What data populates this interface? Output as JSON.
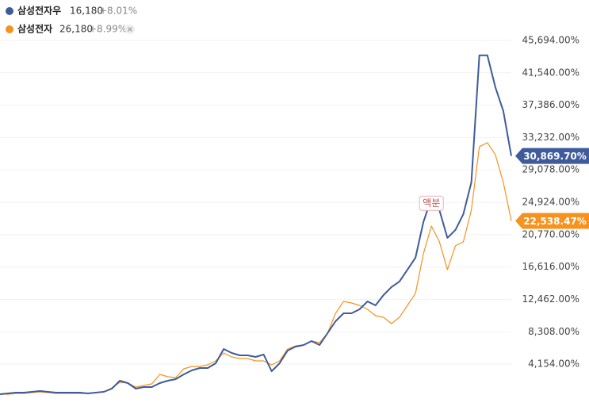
{
  "chart_data": {
    "type": "line",
    "legend": [
      {
        "name": "삼성전자우",
        "price": "16,180",
        "change": "+8.01%"
      },
      {
        "name": "삼성전자",
        "price": "26,180",
        "change": "+8.99%"
      }
    ],
    "annotation": {
      "text": "액분",
      "index": 54,
      "value": 24800
    },
    "series": [
      {
        "name": "삼성전자우",
        "color": "#3f5b9b",
        "values": [
          305,
          407,
          509,
          509,
          611,
          713,
          611,
          509,
          509,
          509,
          509,
          407,
          509,
          611,
          1018,
          2036,
          1731,
          1018,
          1222,
          1222,
          1731,
          2036,
          2240,
          2850,
          3359,
          3665,
          3665,
          4276,
          6108,
          5599,
          5294,
          5294,
          5090,
          5395,
          3258,
          4276,
          5904,
          6413,
          6617,
          7126,
          6617,
          8144,
          9671,
          10689,
          10689,
          11198,
          12216,
          11707,
          13030,
          14048,
          14761,
          16288,
          17815,
          22396,
          25450,
          23923,
          20360,
          21378,
          23414,
          27486,
          43774,
          43774,
          39702,
          36648,
          30869.7
        ],
        "last_label": {
          "value": 30869.7,
          "label": "30,869.70%"
        }
      },
      {
        "name": "삼성전자",
        "color": "#f7921e",
        "values": [
          305,
          305,
          407,
          407,
          509,
          611,
          509,
          407,
          407,
          407,
          407,
          407,
          509,
          611,
          1120,
          1833,
          1731,
          1222,
          1425,
          1629,
          2850,
          2545,
          2443,
          3563,
          3868,
          3868,
          4072,
          4581,
          5599,
          5090,
          4886,
          4886,
          4581,
          4581,
          4072,
          4581,
          6108,
          6515,
          6617,
          7126,
          6922,
          8144,
          10689,
          12216,
          12012,
          11707,
          11198,
          10384,
          10180,
          9366,
          10180,
          11707,
          13234,
          18324,
          21887,
          19851,
          16288,
          19342,
          19851,
          23923,
          32067,
          32576,
          31049,
          27486,
          22538.47
        ],
        "last_label": {
          "value": 22538.47,
          "label": "22,538.47%"
        }
      }
    ],
    "ylim": [
      0,
      46300
    ],
    "yticks": [
      {
        "value": 4154,
        "label": "4,154.00%"
      },
      {
        "value": 8308,
        "label": "8,308.00%"
      },
      {
        "value": 12462,
        "label": "12,462.00%"
      },
      {
        "value": 16616,
        "label": "16,616.00%"
      },
      {
        "value": 20770,
        "label": "20,770.00%"
      },
      {
        "value": 24924,
        "label": "24,924.00%"
      },
      {
        "value": 29078,
        "label": "29,078.00%"
      },
      {
        "value": 33232,
        "label": "33,232.00%"
      },
      {
        "value": 37386,
        "label": "37,386.00%"
      },
      {
        "value": 41540,
        "label": "41,540.00%"
      },
      {
        "value": 45694,
        "label": "45,694.00%"
      }
    ],
    "grid": true
  }
}
